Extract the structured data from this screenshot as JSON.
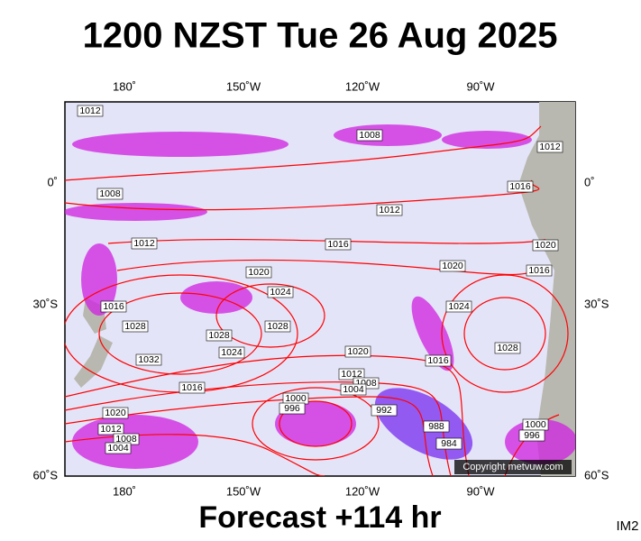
{
  "header": {
    "title": "1200 NZST Tue 26 Aug 2025"
  },
  "map": {
    "top_labels": [
      "180˚",
      "150˚W",
      "120˚W",
      "90˚W"
    ],
    "bottom_labels": [
      "180˚",
      "150˚W",
      "120˚W",
      "90˚W"
    ],
    "left_labels": [
      "0˚",
      "30˚S",
      "60˚S"
    ],
    "right_labels": [
      "0˚",
      "30˚S",
      "60˚S"
    ],
    "isobar_labels": [
      1012,
      1008,
      1012,
      1008,
      1016,
      1012,
      1012,
      1016,
      1020,
      1016,
      1020,
      1020,
      1024,
      1016,
      1024,
      1028,
      1028,
      1028,
      1028,
      1024,
      1032,
      1020,
      1016,
      1012,
      1008,
      1004,
      1016,
      1000,
      996,
      992,
      1020,
      988,
      984,
      1012,
      1008,
      1004,
      1000,
      996
    ],
    "copyright": "Copyright metvuw.com"
  },
  "footer": {
    "forecast": "Forecast +114 hr",
    "code": "IM2"
  }
}
